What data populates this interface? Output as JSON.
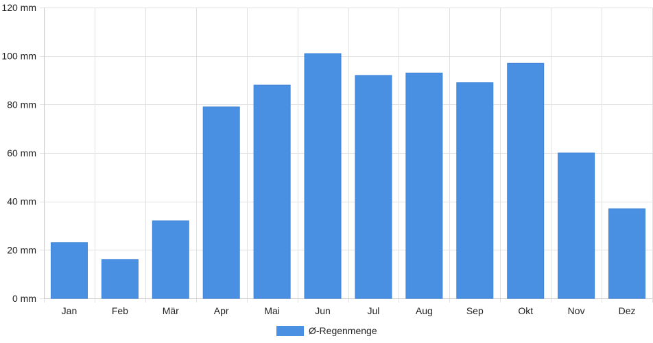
{
  "chart_data": {
    "type": "bar",
    "categories": [
      "Jan",
      "Feb",
      "Mär",
      "Apr",
      "Mai",
      "Jun",
      "Jul",
      "Aug",
      "Sep",
      "Okt",
      "Nov",
      "Dez"
    ],
    "series": [
      {
        "name": "Ø-Regenmenge",
        "color": "#4a90e2",
        "values": [
          23,
          16,
          32,
          79,
          88,
          101,
          92,
          93,
          89,
          97,
          60,
          37
        ]
      }
    ],
    "y_unit": "mm",
    "ylim": [
      0,
      120
    ],
    "y_ticks": [
      0,
      20,
      40,
      60,
      80,
      100,
      120
    ],
    "grid": true,
    "legend": "bottom-center"
  }
}
